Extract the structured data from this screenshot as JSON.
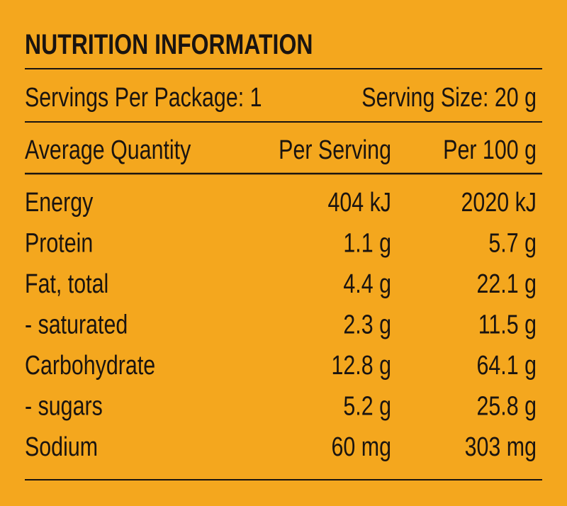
{
  "title": "NUTRITION INFORMATION",
  "servings": {
    "per_package": "Servings Per Package: 1",
    "serving_size": "Serving Size: 20 g"
  },
  "table": {
    "header": [
      "Average Quantity",
      "Per Serving",
      "Per 100 g"
    ],
    "rows": [
      [
        "Energy",
        "404 kJ",
        "2020 kJ"
      ],
      [
        "Protein",
        "1.1 g",
        "5.7 g"
      ],
      [
        "Fat, total",
        "4.4 g",
        "22.1 g"
      ],
      [
        "- saturated",
        "2.3 g",
        "11.5 g"
      ],
      [
        "Carbohydrate",
        "12.8 g",
        "64.1 g"
      ],
      [
        "- sugars",
        "5.2 g",
        "25.8 g"
      ],
      [
        "Sodium",
        "60 mg",
        "303 mg"
      ]
    ]
  }
}
